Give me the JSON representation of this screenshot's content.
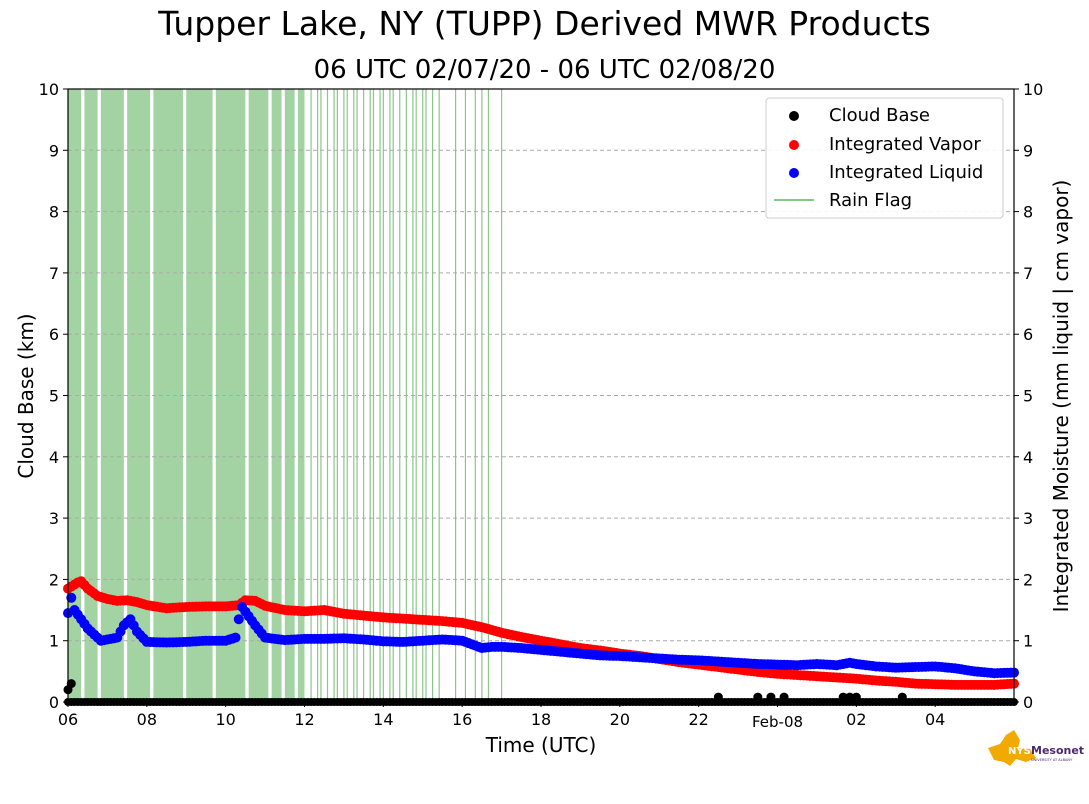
{
  "title": "Tupper Lake, NY (TUPP) Derived MWR Products",
  "subtitle": "06 UTC 02/07/20 - 06 UTC 02/08/20",
  "logo": {
    "text": "NYS Mesonet",
    "subtext": "UNIVERSITY AT ALBANY",
    "color": "#f2a900",
    "text_color": "#4b2a6e"
  },
  "chart_data": {
    "type": "scatter",
    "xlabel": "Time (UTC)",
    "ylabel": "Cloud Base (km)",
    "y2label": "Integrated Moisture (mm liquid | cm vapor)",
    "xlim": [
      "2020-02-07 06:00",
      "2020-02-08 06:00"
    ],
    "ylim": [
      0,
      10
    ],
    "y2lim": [
      0,
      10
    ],
    "x_ticks": [
      "06",
      "08",
      "10",
      "12",
      "14",
      "16",
      "18",
      "20",
      "22",
      "Feb-08",
      "02",
      "04"
    ],
    "y_ticks": [
      "0",
      "1",
      "2",
      "3",
      "4",
      "5",
      "6",
      "7",
      "8",
      "9",
      "10"
    ],
    "grid": "horizontal dashed",
    "legend_position": "top-right",
    "series": [
      {
        "name": "Cloud Base",
        "marker": "dot",
        "color": "#000000",
        "points": [
          [
            "2020-02-07 06:00",
            0.2
          ],
          [
            "2020-02-07 06:05",
            0.3
          ],
          [
            "2020-02-07 22:30",
            0.08
          ],
          [
            "2020-02-07 23:30",
            0.08
          ],
          [
            "2020-02-07 23:50",
            0.08
          ],
          [
            "2020-02-08 00:10",
            0.08
          ],
          [
            "2020-02-08 01:40",
            0.08
          ],
          [
            "2020-02-08 01:50",
            0.08
          ],
          [
            "2020-02-08 02:00",
            0.08
          ],
          [
            "2020-02-08 03:10",
            0.08
          ]
        ],
        "baseline_run": {
          "start": "2020-02-07 06:00",
          "end": "2020-02-08 06:00",
          "value": 0.0
        }
      },
      {
        "name": "Integrated Vapor",
        "marker": "dot",
        "color": "#ff0000",
        "points": [
          [
            "2020-02-07 06:00",
            1.85
          ],
          [
            "2020-02-07 06:15",
            1.95
          ],
          [
            "2020-02-07 06:20",
            1.97
          ],
          [
            "2020-02-07 06:30",
            1.85
          ],
          [
            "2020-02-07 06:45",
            1.73
          ],
          [
            "2020-02-07 07:00",
            1.68
          ],
          [
            "2020-02-07 07:15",
            1.65
          ],
          [
            "2020-02-07 07:30",
            1.66
          ],
          [
            "2020-02-07 07:45",
            1.63
          ],
          [
            "2020-02-07 08:00",
            1.58
          ],
          [
            "2020-02-07 08:30",
            1.53
          ],
          [
            "2020-02-07 09:00",
            1.55
          ],
          [
            "2020-02-07 09:30",
            1.56
          ],
          [
            "2020-02-07 10:00",
            1.56
          ],
          [
            "2020-02-07 10:20",
            1.58
          ],
          [
            "2020-02-07 10:30",
            1.66
          ],
          [
            "2020-02-07 10:45",
            1.65
          ],
          [
            "2020-02-07 11:00",
            1.57
          ],
          [
            "2020-02-07 11:30",
            1.5
          ],
          [
            "2020-02-07 12:00",
            1.48
          ],
          [
            "2020-02-07 12:30",
            1.5
          ],
          [
            "2020-02-07 13:00",
            1.44
          ],
          [
            "2020-02-07 13:30",
            1.41
          ],
          [
            "2020-02-07 14:00",
            1.38
          ],
          [
            "2020-02-07 14:30",
            1.36
          ],
          [
            "2020-02-07 15:00",
            1.34
          ],
          [
            "2020-02-07 15:30",
            1.32
          ],
          [
            "2020-02-07 16:00",
            1.29
          ],
          [
            "2020-02-07 16:30",
            1.22
          ],
          [
            "2020-02-07 17:00",
            1.13
          ],
          [
            "2020-02-07 17:30",
            1.06
          ],
          [
            "2020-02-07 18:00",
            1.0
          ],
          [
            "2020-02-07 18:30",
            0.94
          ],
          [
            "2020-02-07 19:00",
            0.88
          ],
          [
            "2020-02-07 19:30",
            0.84
          ],
          [
            "2020-02-07 20:00",
            0.79
          ],
          [
            "2020-02-07 20:30",
            0.75
          ],
          [
            "2020-02-07 21:00",
            0.7
          ],
          [
            "2020-02-07 21:30",
            0.65
          ],
          [
            "2020-02-07 22:00",
            0.61
          ],
          [
            "2020-02-07 22:30",
            0.57
          ],
          [
            "2020-02-07 23:00",
            0.53
          ],
          [
            "2020-02-07 23:30",
            0.49
          ],
          [
            "2020-02-08 00:00",
            0.46
          ],
          [
            "2020-02-08 00:30",
            0.44
          ],
          [
            "2020-02-08 01:00",
            0.42
          ],
          [
            "2020-02-08 01:30",
            0.4
          ],
          [
            "2020-02-08 02:00",
            0.38
          ],
          [
            "2020-02-08 02:30",
            0.35
          ],
          [
            "2020-02-08 03:00",
            0.33
          ],
          [
            "2020-02-08 03:30",
            0.3
          ],
          [
            "2020-02-08 04:00",
            0.29
          ],
          [
            "2020-02-08 04:30",
            0.28
          ],
          [
            "2020-02-08 05:00",
            0.28
          ],
          [
            "2020-02-08 05:30",
            0.28
          ],
          [
            "2020-02-08 06:00",
            0.3
          ]
        ]
      },
      {
        "name": "Integrated Liquid",
        "marker": "dot",
        "color": "#0000ff",
        "points": [
          [
            "2020-02-07 06:00",
            1.45
          ],
          [
            "2020-02-07 06:05",
            1.7
          ],
          [
            "2020-02-07 06:10",
            1.5
          ],
          [
            "2020-02-07 06:20",
            1.35
          ],
          [
            "2020-02-07 06:30",
            1.2
          ],
          [
            "2020-02-07 06:40",
            1.1
          ],
          [
            "2020-02-07 06:50",
            1.0
          ],
          [
            "2020-02-07 07:00",
            1.02
          ],
          [
            "2020-02-07 07:15",
            1.05
          ],
          [
            "2020-02-07 07:25",
            1.25
          ],
          [
            "2020-02-07 07:35",
            1.35
          ],
          [
            "2020-02-07 07:45",
            1.15
          ],
          [
            "2020-02-07 08:00",
            0.98
          ],
          [
            "2020-02-07 08:30",
            0.97
          ],
          [
            "2020-02-07 09:00",
            0.98
          ],
          [
            "2020-02-07 09:30",
            1.0
          ],
          [
            "2020-02-07 10:00",
            1.0
          ],
          [
            "2020-02-07 10:15",
            1.05
          ],
          [
            "2020-02-07 10:20",
            1.35
          ],
          [
            "2020-02-07 10:25",
            1.55
          ],
          [
            "2020-02-07 10:35",
            1.4
          ],
          [
            "2020-02-07 10:45",
            1.25
          ],
          [
            "2020-02-07 11:00",
            1.05
          ],
          [
            "2020-02-07 11:30",
            1.01
          ],
          [
            "2020-02-07 12:00",
            1.03
          ],
          [
            "2020-02-07 12:30",
            1.03
          ],
          [
            "2020-02-07 13:00",
            1.04
          ],
          [
            "2020-02-07 13:30",
            1.02
          ],
          [
            "2020-02-07 14:00",
            0.99
          ],
          [
            "2020-02-07 14:30",
            0.98
          ],
          [
            "2020-02-07 15:00",
            1.0
          ],
          [
            "2020-02-07 15:30",
            1.02
          ],
          [
            "2020-02-07 16:00",
            1.0
          ],
          [
            "2020-02-07 16:30",
            0.88
          ],
          [
            "2020-02-07 16:45",
            0.9
          ],
          [
            "2020-02-07 17:00",
            0.9
          ],
          [
            "2020-02-07 17:30",
            0.88
          ],
          [
            "2020-02-07 18:00",
            0.85
          ],
          [
            "2020-02-07 18:30",
            0.82
          ],
          [
            "2020-02-07 19:00",
            0.79
          ],
          [
            "2020-02-07 19:30",
            0.76
          ],
          [
            "2020-02-07 20:00",
            0.75
          ],
          [
            "2020-02-07 20:30",
            0.73
          ],
          [
            "2020-02-07 21:00",
            0.71
          ],
          [
            "2020-02-07 21:30",
            0.69
          ],
          [
            "2020-02-07 22:00",
            0.68
          ],
          [
            "2020-02-07 22:30",
            0.66
          ],
          [
            "2020-02-07 23:00",
            0.64
          ],
          [
            "2020-02-07 23:30",
            0.62
          ],
          [
            "2020-02-08 00:00",
            0.61
          ],
          [
            "2020-02-08 00:30",
            0.6
          ],
          [
            "2020-02-08 01:00",
            0.62
          ],
          [
            "2020-02-08 01:30",
            0.6
          ],
          [
            "2020-02-08 01:50",
            0.64
          ],
          [
            "2020-02-08 02:00",
            0.62
          ],
          [
            "2020-02-08 02:30",
            0.58
          ],
          [
            "2020-02-08 03:00",
            0.56
          ],
          [
            "2020-02-08 03:30",
            0.57
          ],
          [
            "2020-02-08 04:00",
            0.58
          ],
          [
            "2020-02-08 04:30",
            0.55
          ],
          [
            "2020-02-08 05:00",
            0.5
          ],
          [
            "2020-02-08 05:30",
            0.47
          ],
          [
            "2020-02-08 06:00",
            0.48
          ]
        ]
      },
      {
        "name": "Rain Flag",
        "marker": "vertical line",
        "color": "#5cb85c",
        "solid_spans": [
          [
            "2020-02-07 06:00",
            "2020-02-07 06:20"
          ],
          [
            "2020-02-07 06:25",
            "2020-02-07 06:45"
          ],
          [
            "2020-02-07 06:50",
            "2020-02-07 07:25"
          ],
          [
            "2020-02-07 07:30",
            "2020-02-07 08:05"
          ],
          [
            "2020-02-07 08:10",
            "2020-02-07 08:55"
          ],
          [
            "2020-02-07 09:00",
            "2020-02-07 09:40"
          ],
          [
            "2020-02-07 09:45",
            "2020-02-07 10:30"
          ],
          [
            "2020-02-07 10:35",
            "2020-02-07 11:05"
          ],
          [
            "2020-02-07 11:10",
            "2020-02-07 11:25"
          ],
          [
            "2020-02-07 11:30",
            "2020-02-07 11:45"
          ],
          [
            "2020-02-07 11:50",
            "2020-02-07 12:00"
          ]
        ],
        "line_times": [
          "2020-02-07 12:10",
          "2020-02-07 12:20",
          "2020-02-07 12:25",
          "2020-02-07 12:35",
          "2020-02-07 12:45",
          "2020-02-07 12:50",
          "2020-02-07 13:00",
          "2020-02-07 13:05",
          "2020-02-07 13:15",
          "2020-02-07 13:20",
          "2020-02-07 13:30",
          "2020-02-07 13:40",
          "2020-02-07 13:45",
          "2020-02-07 13:55",
          "2020-02-07 14:00",
          "2020-02-07 14:10",
          "2020-02-07 14:15",
          "2020-02-07 14:25",
          "2020-02-07 14:35",
          "2020-02-07 14:45",
          "2020-02-07 14:50",
          "2020-02-07 15:00",
          "2020-02-07 15:05",
          "2020-02-07 15:15",
          "2020-02-07 15:25",
          "2020-02-07 15:50",
          "2020-02-07 16:05",
          "2020-02-07 16:20",
          "2020-02-07 16:30",
          "2020-02-07 16:40",
          "2020-02-07 17:00"
        ]
      }
    ]
  }
}
